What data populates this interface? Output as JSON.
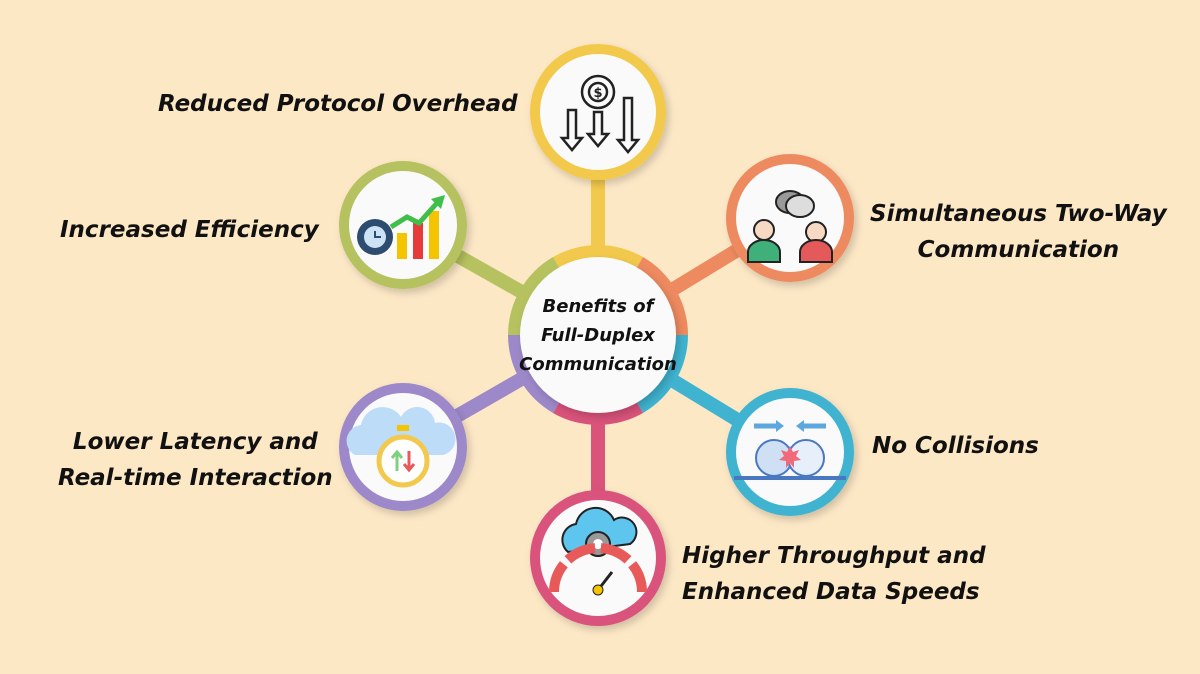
{
  "center": {
    "line1": "Benefits of",
    "line2": "Full-Duplex",
    "line3": "Communication"
  },
  "benefits": [
    {
      "line1": "Reduced Protocol Overhead",
      "icon": "gear-dollar-down-arrows-icon",
      "color": "#f2c94c"
    },
    {
      "line1": "Simultaneous Two-Way",
      "line2": "Communication",
      "icon": "two-people-chat-icon",
      "color": "#ee8a5f"
    },
    {
      "line1": "No Collisions",
      "icon": "collision-icon",
      "color": "#40b3d0"
    },
    {
      "line1": "Higher Throughput and",
      "line2": "Enhanced Data Speeds",
      "icon": "speedometer-cloud-icon",
      "color": "#d9537b"
    },
    {
      "line1": "Lower Latency and",
      "line2": "Real-time Interaction",
      "icon": "cloud-stopwatch-icon",
      "color": "#9d88c9"
    },
    {
      "line1": "Increased Efficiency",
      "icon": "gear-growth-chart-icon",
      "color": "#b6c25f"
    }
  ],
  "colors": {
    "background": "#fde8c6",
    "circle_fill": "#fafafa"
  }
}
